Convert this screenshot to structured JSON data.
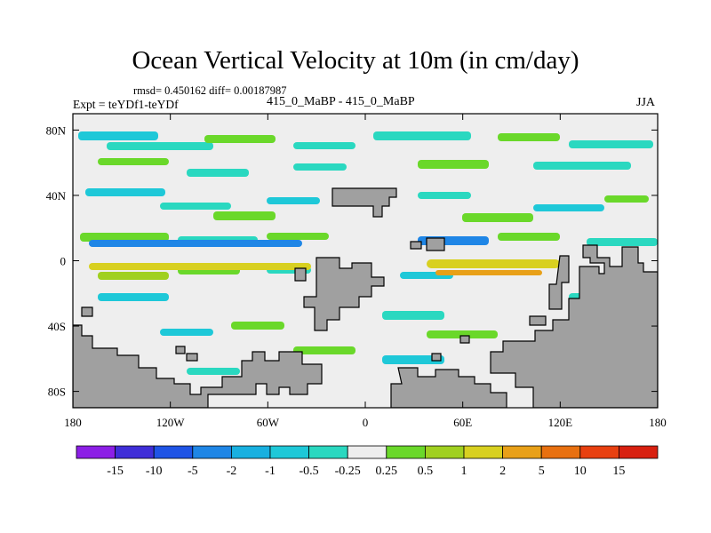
{
  "chart_data": {
    "type": "heatmap",
    "title": "Ocean Vertical Velocity at 10m (in cm/day)",
    "stats_text": "rmsd= 0.450162 diff= 0.00187987",
    "left_label": "Expt = teYDf1-teYDf",
    "center_label": "415_0_MaBP - 415_0_MaBP",
    "right_label": "JJA",
    "x_axis": {
      "range": [
        -180,
        180
      ],
      "ticks": [
        -180,
        -120,
        -60,
        0,
        60,
        120,
        180
      ],
      "tick_labels": [
        "180",
        "120W",
        "60W",
        "0",
        "60E",
        "120E",
        "180"
      ]
    },
    "y_axis": {
      "range": [
        -90,
        90
      ],
      "ticks": [
        80,
        40,
        0,
        -40,
        -80
      ],
      "tick_labels": [
        "80N",
        "40N",
        "0",
        "40S",
        "80S"
      ]
    },
    "colorbar": {
      "levels": [
        "-15",
        "-10",
        "-5",
        "-2",
        "-1",
        "-0.5",
        "-0.25",
        "0.25",
        "0.5",
        "1",
        "2",
        "5",
        "10",
        "15"
      ],
      "colors": [
        "#8c1fe6",
        "#3f2ed8",
        "#1f54e6",
        "#1f86e6",
        "#18b0e0",
        "#1ec8d8",
        "#2ad8c0",
        "#eeeeee",
        "#6ad82a",
        "#a0d020",
        "#d8d020",
        "#e8a018",
        "#e87010",
        "#e84010",
        "#d82010"
      ]
    },
    "land_color": "#a0a0a0",
    "ocean_neutral_color": "#eeeeee"
  }
}
